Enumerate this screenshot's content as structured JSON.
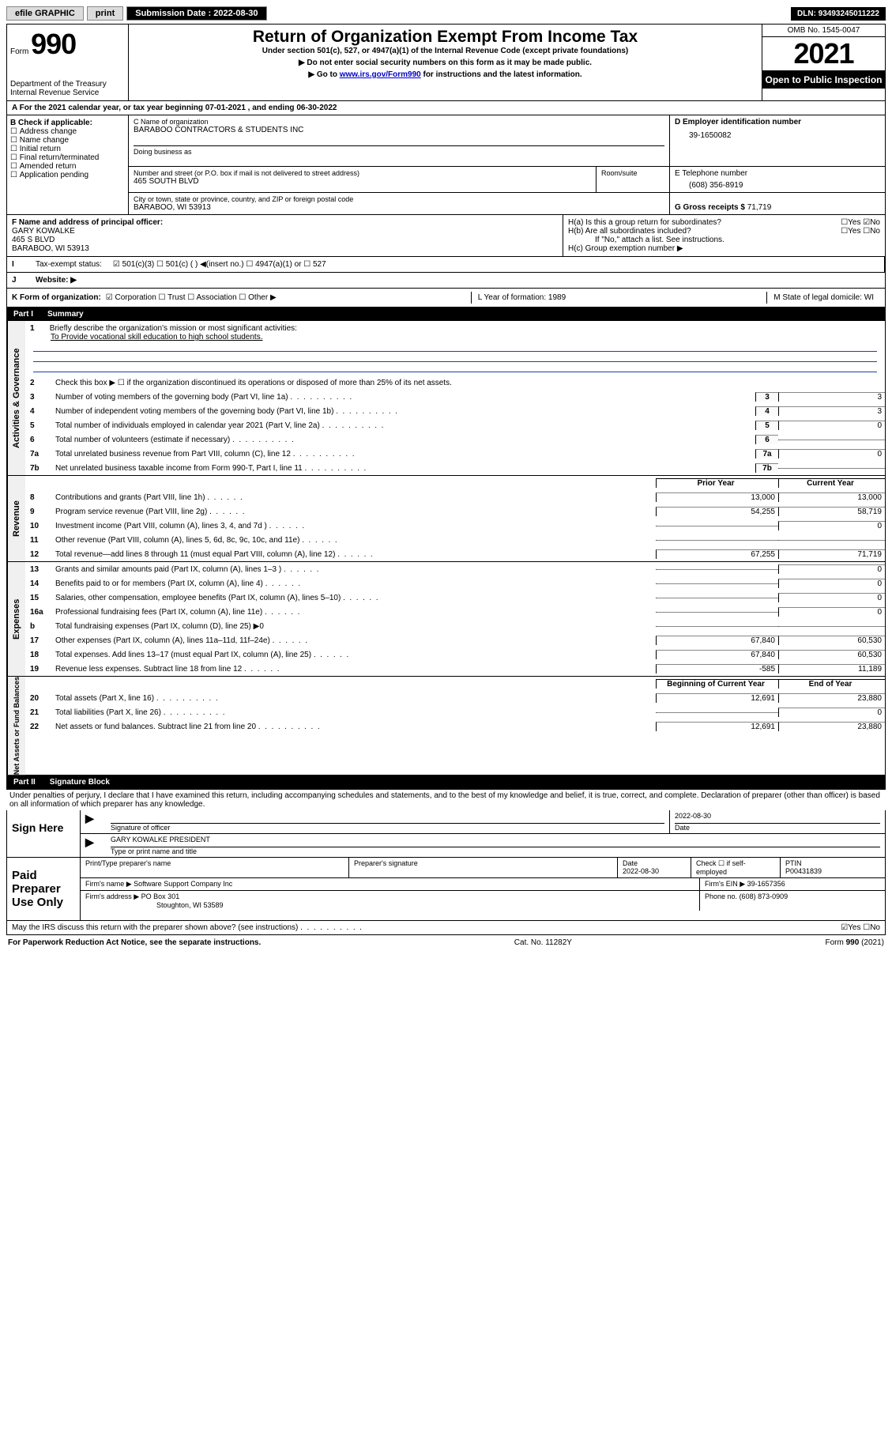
{
  "topbar": {
    "efile": "efile GRAPHIC",
    "print": "print",
    "sub_label": "Submission Date : 2022-08-30",
    "dln": "DLN: 93493245011222"
  },
  "header": {
    "form_word": "Form",
    "form_num": "990",
    "title": "Return of Organization Exempt From Income Tax",
    "subtitle": "Under section 501(c), 527, or 4947(a)(1) of the Internal Revenue Code (except private foundations)",
    "note1": "▶ Do not enter social security numbers on this form as it may be made public.",
    "note2_pre": "▶ Go to ",
    "note2_link": "www.irs.gov/Form990",
    "note2_post": " for instructions and the latest information.",
    "dept": "Department of the Treasury",
    "irs": "Internal Revenue Service",
    "omb": "OMB No. 1545-0047",
    "year": "2021",
    "open": "Open to Public Inspection"
  },
  "A": {
    "line": "A For the 2021 calendar year, or tax year beginning 07-01-2021   , and ending 06-30-2022"
  },
  "B": {
    "label": "B Check if applicable:",
    "opts": [
      "Address change",
      "Name change",
      "Initial return",
      "Final return/terminated",
      "Amended return",
      "Application pending"
    ]
  },
  "C": {
    "name_lbl": "C Name of organization",
    "name": "BARABOO CONTRACTORS & STUDENTS INC",
    "dba_lbl": "Doing business as",
    "addr_lbl": "Number and street (or P.O. box if mail is not delivered to street address)",
    "room_lbl": "Room/suite",
    "addr": "465 SOUTH BLVD",
    "city_lbl": "City or town, state or province, country, and ZIP or foreign postal code",
    "city": "BARABOO, WI  53913"
  },
  "D": {
    "lbl": "D Employer identification number",
    "val": "39-1650082"
  },
  "E": {
    "lbl": "E Telephone number",
    "val": "(608) 356-8919"
  },
  "G": {
    "lbl": "G Gross receipts $",
    "val": "71,719"
  },
  "F": {
    "lbl": "F Name and address of principal officer:",
    "name": "GARY KOWALKE",
    "addr": "465 S BLVD",
    "city": "BARABOO, WI  53913"
  },
  "H": {
    "a": "H(a)  Is this a group return for subordinates?",
    "a_ans": "☐Yes ☑No",
    "b": "H(b)  Are all subordinates included?",
    "b_ans": "☐Yes ☐No",
    "b_note": "If \"No,\" attach a list. See instructions.",
    "c": "H(c)  Group exemption number ▶"
  },
  "I": {
    "lbl": "Tax-exempt status:",
    "opts": "☑ 501(c)(3)   ☐ 501(c) (  ) ◀(insert no.)   ☐ 4947(a)(1) or  ☐ 527"
  },
  "J": {
    "lbl": "Website: ▶"
  },
  "K": {
    "lbl": "K Form of organization:",
    "opts": "☑ Corporation  ☐ Trust  ☐ Association  ☐ Other ▶"
  },
  "L": {
    "txt": "L Year of formation: 1989"
  },
  "M": {
    "txt": "M State of legal domicile: WI"
  },
  "parts": {
    "p1": "Part I",
    "p1t": "Summary",
    "p2": "Part II",
    "p2t": "Signature Block"
  },
  "summary": {
    "q1": "Briefly describe the organization's mission or most significant activities:",
    "mission": "To Provide vocational skill education to high school students.",
    "q2": "Check this box ▶ ☐  if the organization discontinued its operations or disposed of more than 25% of its net assets.",
    "lines": {
      "3": {
        "t": "Number of voting members of the governing body (Part VI, line 1a)",
        "k": "3",
        "v": "3"
      },
      "4": {
        "t": "Number of independent voting members of the governing body (Part VI, line 1b)",
        "k": "4",
        "v": "3"
      },
      "5": {
        "t": "Total number of individuals employed in calendar year 2021 (Part V, line 2a)",
        "k": "5",
        "v": "0"
      },
      "6": {
        "t": "Total number of volunteers (estimate if necessary)",
        "k": "6",
        "v": ""
      },
      "7a": {
        "t": "Total unrelated business revenue from Part VIII, column (C), line 12",
        "k": "7a",
        "v": "0"
      },
      "7b": {
        "t": "Net unrelated business taxable income from Form 990-T, Part I, line 11",
        "k": "7b",
        "v": ""
      }
    },
    "col_prior": "Prior Year",
    "col_curr": "Current Year",
    "rev": [
      {
        "n": "8",
        "t": "Contributions and grants (Part VIII, line 1h)",
        "p": "13,000",
        "c": "13,000"
      },
      {
        "n": "9",
        "t": "Program service revenue (Part VIII, line 2g)",
        "p": "54,255",
        "c": "58,719"
      },
      {
        "n": "10",
        "t": "Investment income (Part VIII, column (A), lines 3, 4, and 7d )",
        "p": "",
        "c": "0"
      },
      {
        "n": "11",
        "t": "Other revenue (Part VIII, column (A), lines 5, 6d, 8c, 9c, 10c, and 11e)",
        "p": "",
        "c": ""
      },
      {
        "n": "12",
        "t": "Total revenue—add lines 8 through 11 (must equal Part VIII, column (A), line 12)",
        "p": "67,255",
        "c": "71,719"
      }
    ],
    "exp": [
      {
        "n": "13",
        "t": "Grants and similar amounts paid (Part IX, column (A), lines 1–3 )",
        "p": "",
        "c": "0"
      },
      {
        "n": "14",
        "t": "Benefits paid to or for members (Part IX, column (A), line 4)",
        "p": "",
        "c": "0"
      },
      {
        "n": "15",
        "t": "Salaries, other compensation, employee benefits (Part IX, column (A), lines 5–10)",
        "p": "",
        "c": "0"
      },
      {
        "n": "16a",
        "t": "Professional fundraising fees (Part IX, column (A), line 11e)",
        "p": "",
        "c": "0"
      },
      {
        "n": "b",
        "t": "Total fundraising expenses (Part IX, column (D), line 25) ▶0",
        "p": "grey",
        "c": "grey"
      },
      {
        "n": "17",
        "t": "Other expenses (Part IX, column (A), lines 11a–11d, 11f–24e)",
        "p": "67,840",
        "c": "60,530"
      },
      {
        "n": "18",
        "t": "Total expenses. Add lines 13–17 (must equal Part IX, column (A), line 25)",
        "p": "67,840",
        "c": "60,530"
      },
      {
        "n": "19",
        "t": "Revenue less expenses. Subtract line 18 from line 12",
        "p": "-585",
        "c": "11,189"
      }
    ],
    "col_beg": "Beginning of Current Year",
    "col_end": "End of Year",
    "net": [
      {
        "n": "20",
        "t": "Total assets (Part X, line 16)",
        "p": "12,691",
        "c": "23,880"
      },
      {
        "n": "21",
        "t": "Total liabilities (Part X, line 26)",
        "p": "",
        "c": "0"
      },
      {
        "n": "22",
        "t": "Net assets or fund balances. Subtract line 21 from line 20",
        "p": "12,691",
        "c": "23,880"
      }
    ]
  },
  "sig": {
    "decl": "Under penalties of perjury, I declare that I have examined this return, including accompanying schedules and statements, and to the best of my knowledge and belief, it is true, correct, and complete. Declaration of preparer (other than officer) is based on all information of which preparer has any knowledge.",
    "sign_here": "Sign Here",
    "sig_officer": "Signature of officer",
    "date": "Date",
    "date_val": "2022-08-30",
    "name_title": "GARY KOWALKE  PRESIDENT",
    "name_title_lbl": "Type or print name and title",
    "paid": "Paid Preparer Use Only",
    "prep_name_lbl": "Print/Type preparer's name",
    "prep_sig_lbl": "Preparer's signature",
    "prep_date": "2022-08-30",
    "prep_check": "Check ☐ if self-employed",
    "ptin_lbl": "PTIN",
    "ptin": "P00431839",
    "firm_name_lbl": "Firm's name    ▶",
    "firm_name": "Software Support Company Inc",
    "firm_ein_lbl": "Firm's EIN ▶",
    "firm_ein": "39-1657356",
    "firm_addr_lbl": "Firm's address ▶",
    "firm_addr1": "PO Box 301",
    "firm_addr2": "Stoughton, WI  53589",
    "phone_lbl": "Phone no.",
    "phone": "(608) 873-0909",
    "discuss": "May the IRS discuss this return with the preparer shown above? (see instructions)",
    "discuss_ans": "☑Yes ☐No"
  },
  "footer": {
    "l": "For Paperwork Reduction Act Notice, see the separate instructions.",
    "m": "Cat. No. 11282Y",
    "r": "Form 990 (2021)"
  },
  "vlabels": {
    "gov": "Activities & Governance",
    "rev": "Revenue",
    "exp": "Expenses",
    "net": "Net Assets or Fund Balances"
  }
}
